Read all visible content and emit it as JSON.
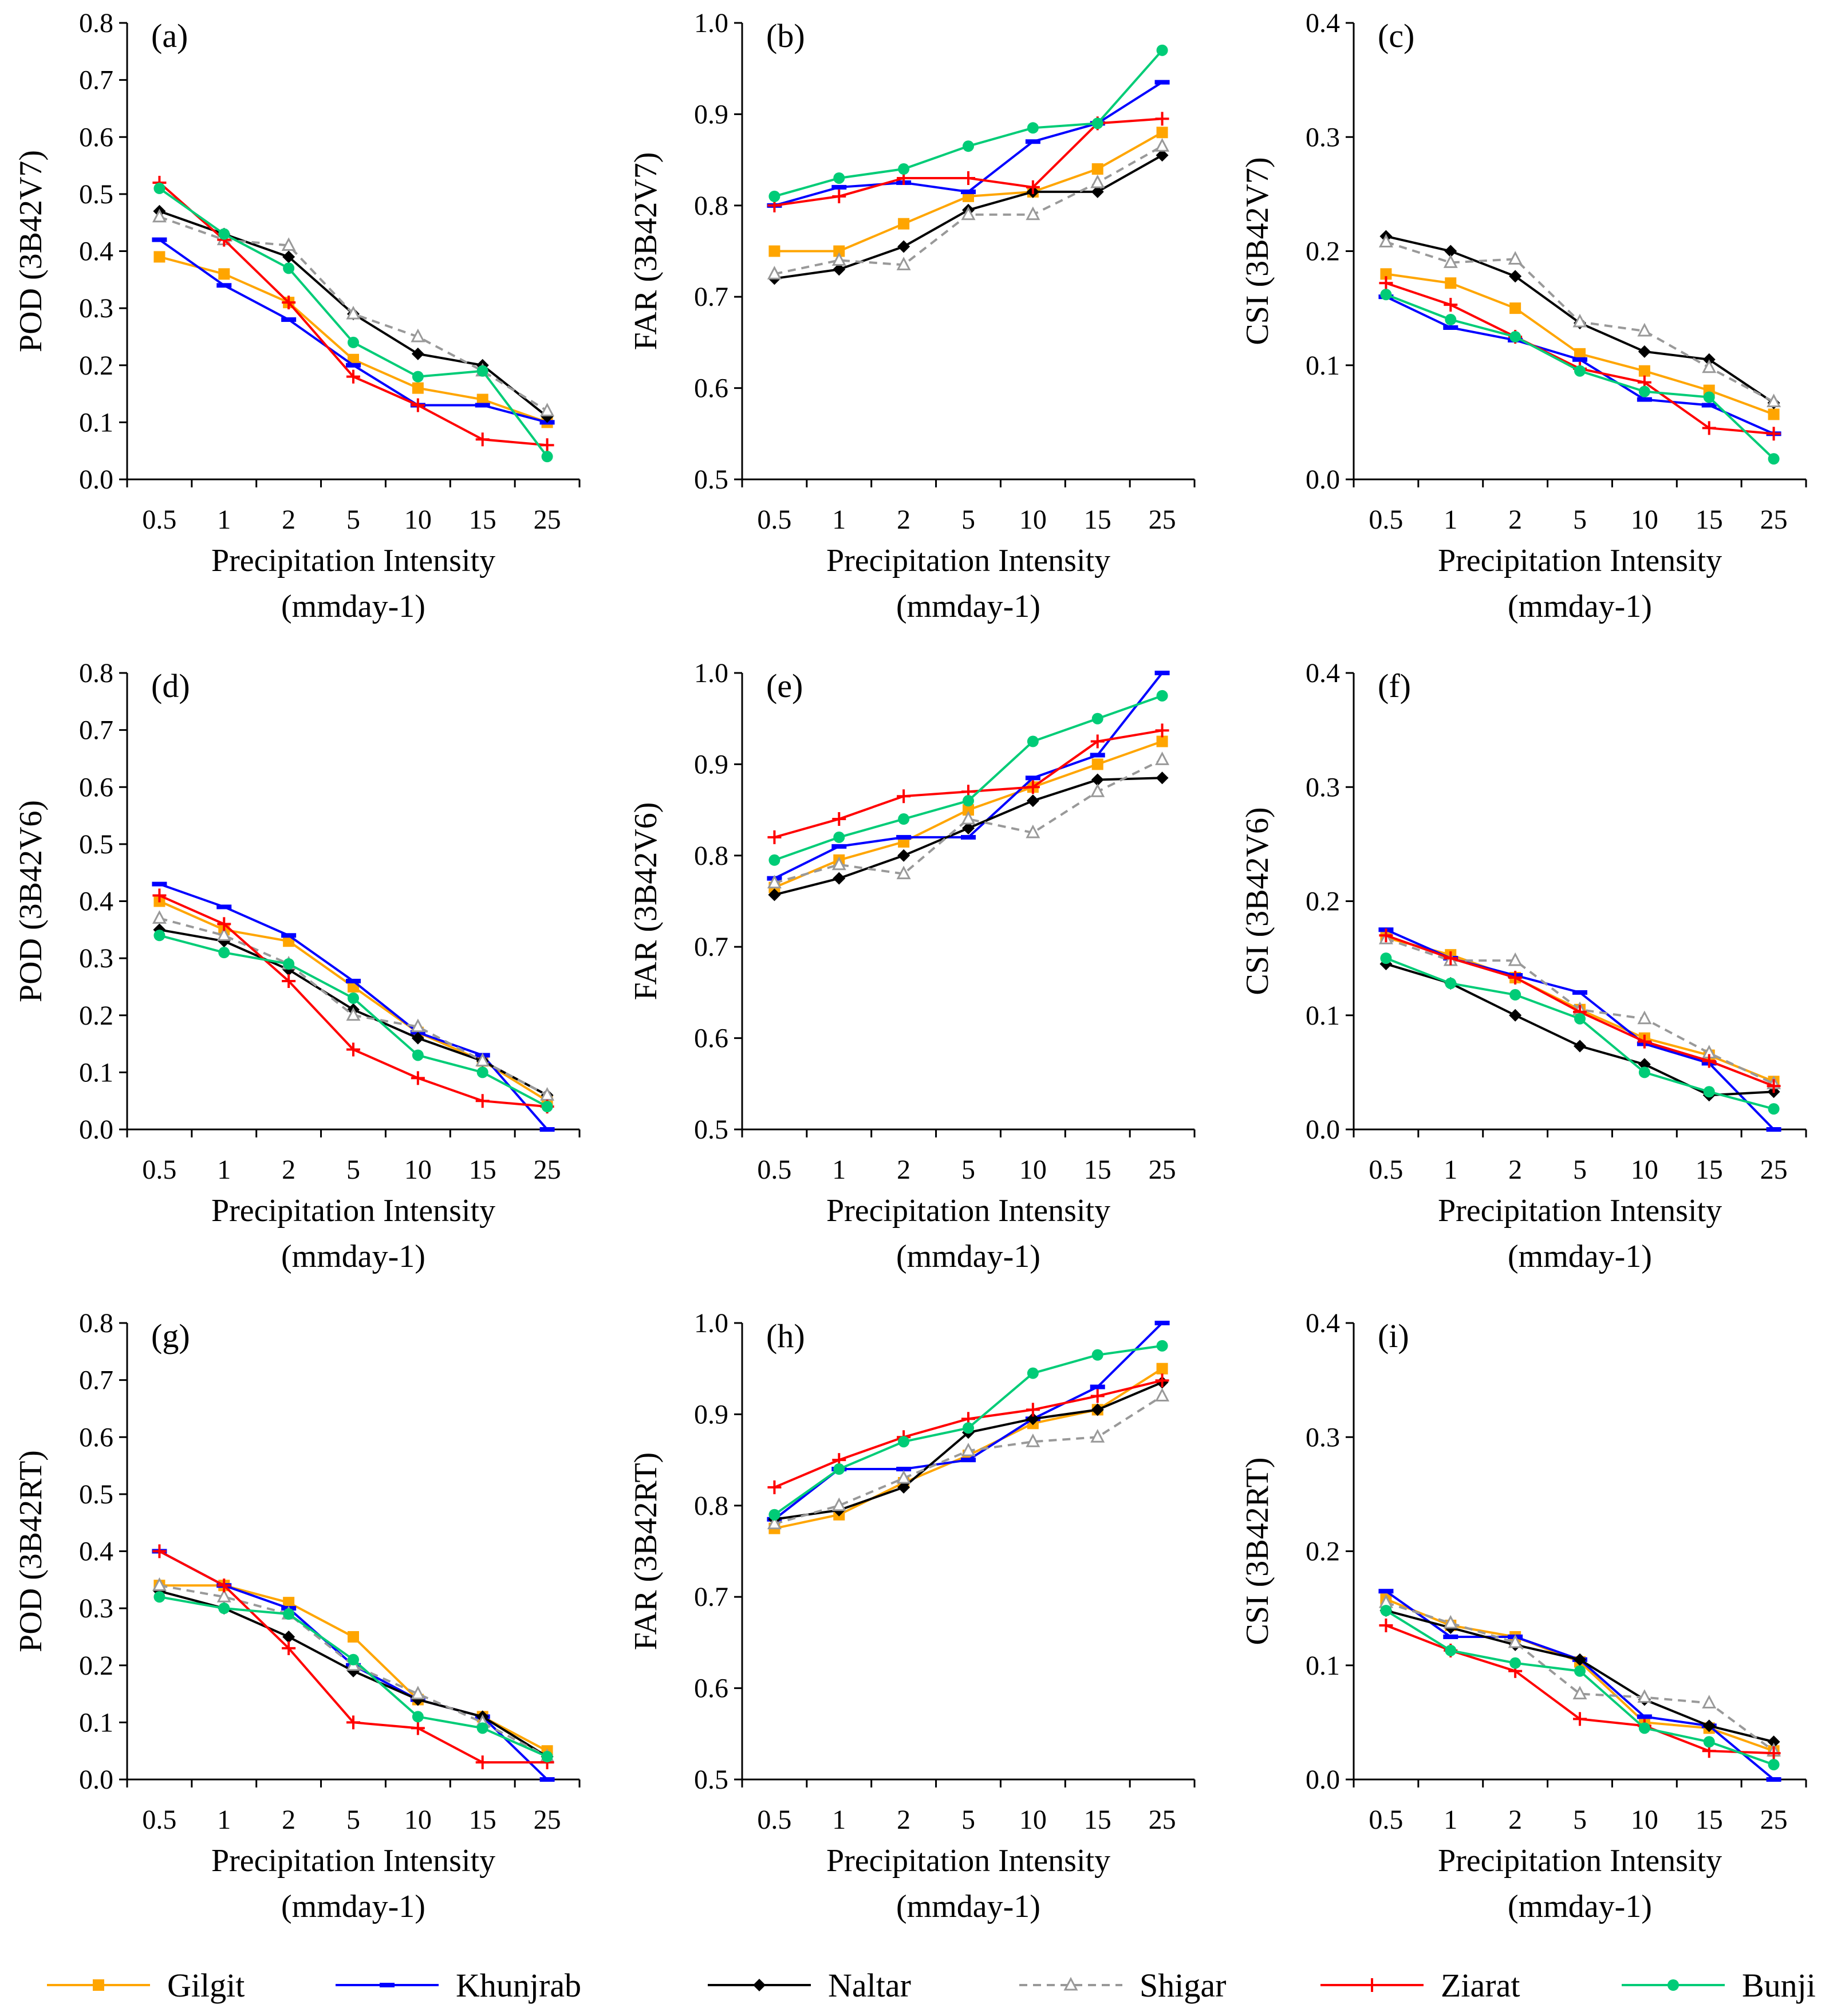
{
  "figure": {
    "category_ticks": [
      "0.5",
      "1",
      "2",
      "5",
      "10",
      "15",
      "25"
    ],
    "xlabel_line1": "Precipitation Intensity",
    "xlabel_line2": "(mmday-1)"
  },
  "series_styles": [
    {
      "name": "Gilgit",
      "color": "#FFA500",
      "marker": "square",
      "dash": ""
    },
    {
      "name": "Khunjrab",
      "color": "#0000FF",
      "marker": "dash",
      "dash": ""
    },
    {
      "name": "Naltar",
      "color": "#000000",
      "marker": "diamond",
      "dash": ""
    },
    {
      "name": "Shigar",
      "color": "#999999",
      "marker": "triangle",
      "dash": "14,10"
    },
    {
      "name": "Ziarat",
      "color": "#FF0000",
      "marker": "plus",
      "dash": ""
    },
    {
      "name": "Bunji",
      "color": "#00CC77",
      "marker": "circle",
      "dash": ""
    }
  ],
  "chart_data": [
    {
      "type": "line",
      "panel": "(a)",
      "ylabel": "POD (3B42V7)",
      "ylim": [
        0,
        0.8
      ],
      "yticks": [
        "0.0",
        "0.1",
        "0.2",
        "0.3",
        "0.4",
        "0.5",
        "0.6",
        "0.7",
        "0.8"
      ],
      "categories": [
        "0.5",
        "1",
        "2",
        "5",
        "10",
        "15",
        "25"
      ],
      "series": [
        {
          "name": "Gilgit",
          "values": [
            0.39,
            0.36,
            0.31,
            0.21,
            0.16,
            0.14,
            0.1
          ]
        },
        {
          "name": "Khunjrab",
          "values": [
            0.42,
            0.34,
            0.28,
            0.2,
            0.13,
            0.13,
            0.1
          ]
        },
        {
          "name": "Naltar",
          "values": [
            0.47,
            0.43,
            0.39,
            0.29,
            0.22,
            0.2,
            0.11
          ]
        },
        {
          "name": "Shigar",
          "values": [
            0.46,
            0.42,
            0.41,
            0.29,
            0.25,
            0.19,
            0.12
          ]
        },
        {
          "name": "Ziarat",
          "values": [
            0.52,
            0.42,
            0.31,
            0.18,
            0.13,
            0.07,
            0.06
          ]
        },
        {
          "name": "Bunji",
          "values": [
            0.51,
            0.43,
            0.37,
            0.24,
            0.18,
            0.19,
            0.04
          ]
        }
      ]
    },
    {
      "type": "line",
      "panel": "(b)",
      "ylabel": "FAR (3B42V7)",
      "ylim": [
        0.5,
        1.0
      ],
      "yticks": [
        "0.5",
        "0.6",
        "0.7",
        "0.8",
        "0.9",
        "1.0"
      ],
      "categories": [
        "0.5",
        "1",
        "2",
        "5",
        "10",
        "15",
        "25"
      ],
      "series": [
        {
          "name": "Gilgit",
          "values": [
            0.75,
            0.75,
            0.78,
            0.81,
            0.815,
            0.84,
            0.88
          ]
        },
        {
          "name": "Khunjrab",
          "values": [
            0.8,
            0.82,
            0.825,
            0.815,
            0.87,
            0.89,
            0.935
          ]
        },
        {
          "name": "Naltar",
          "values": [
            0.72,
            0.73,
            0.755,
            0.795,
            0.815,
            0.815,
            0.855
          ]
        },
        {
          "name": "Shigar",
          "values": [
            0.725,
            0.74,
            0.735,
            0.79,
            0.79,
            0.825,
            0.865
          ]
        },
        {
          "name": "Ziarat",
          "values": [
            0.8,
            0.81,
            0.83,
            0.83,
            0.82,
            0.89,
            0.895
          ]
        },
        {
          "name": "Bunji",
          "values": [
            0.81,
            0.83,
            0.84,
            0.865,
            0.885,
            0.89,
            0.97
          ]
        }
      ]
    },
    {
      "type": "line",
      "panel": "(c)",
      "ylabel": "CSI (3B42V7)",
      "ylim": [
        0,
        0.4
      ],
      "yticks": [
        "0.0",
        "0.1",
        "0.2",
        "0.3",
        "0.4"
      ],
      "categories": [
        "0.5",
        "1",
        "2",
        "5",
        "10",
        "15",
        "25"
      ],
      "series": [
        {
          "name": "Gilgit",
          "values": [
            0.18,
            0.172,
            0.15,
            0.11,
            0.095,
            0.078,
            0.057
          ]
        },
        {
          "name": "Khunjrab",
          "values": [
            0.16,
            0.133,
            0.122,
            0.105,
            0.07,
            0.065,
            0.04
          ]
        },
        {
          "name": "Naltar",
          "values": [
            0.213,
            0.2,
            0.178,
            0.137,
            0.112,
            0.105,
            0.067
          ]
        },
        {
          "name": "Shigar",
          "values": [
            0.208,
            0.19,
            0.193,
            0.138,
            0.13,
            0.098,
            0.068
          ]
        },
        {
          "name": "Ziarat",
          "values": [
            0.172,
            0.153,
            0.125,
            0.097,
            0.085,
            0.045,
            0.04
          ]
        },
        {
          "name": "Bunji",
          "values": [
            0.162,
            0.14,
            0.125,
            0.095,
            0.077,
            0.072,
            0.018
          ]
        }
      ]
    },
    {
      "type": "line",
      "panel": "(d)",
      "ylabel": "POD (3B42V6)",
      "ylim": [
        0,
        0.8
      ],
      "yticks": [
        "0.0",
        "0.1",
        "0.2",
        "0.3",
        "0.4",
        "0.5",
        "0.6",
        "0.7",
        "0.8"
      ],
      "categories": [
        "0.5",
        "1",
        "2",
        "5",
        "10",
        "15",
        "25"
      ],
      "series": [
        {
          "name": "Gilgit",
          "values": [
            0.4,
            0.35,
            0.33,
            0.25,
            0.17,
            0.12,
            0.05
          ]
        },
        {
          "name": "Khunjrab",
          "values": [
            0.43,
            0.39,
            0.34,
            0.26,
            0.17,
            0.13,
            0.0
          ]
        },
        {
          "name": "Naltar",
          "values": [
            0.35,
            0.33,
            0.28,
            0.21,
            0.16,
            0.12,
            0.06
          ]
        },
        {
          "name": "Shigar",
          "values": [
            0.37,
            0.34,
            0.29,
            0.2,
            0.18,
            0.12,
            0.06
          ]
        },
        {
          "name": "Ziarat",
          "values": [
            0.41,
            0.36,
            0.26,
            0.14,
            0.09,
            0.05,
            0.04
          ]
        },
        {
          "name": "Bunji",
          "values": [
            0.34,
            0.31,
            0.29,
            0.23,
            0.13,
            0.1,
            0.04
          ]
        }
      ]
    },
    {
      "type": "line",
      "panel": "(e)",
      "ylabel": "FAR (3B42V6)",
      "ylim": [
        0.5,
        1.0
      ],
      "yticks": [
        "0.5",
        "0.6",
        "0.7",
        "0.8",
        "0.9",
        "1.0"
      ],
      "categories": [
        "0.5",
        "1",
        "2",
        "5",
        "10",
        "15",
        "25"
      ],
      "series": [
        {
          "name": "Gilgit",
          "values": [
            0.765,
            0.795,
            0.815,
            0.85,
            0.875,
            0.9,
            0.925
          ]
        },
        {
          "name": "Khunjrab",
          "values": [
            0.775,
            0.81,
            0.82,
            0.82,
            0.885,
            0.91,
            1.0
          ]
        },
        {
          "name": "Naltar",
          "values": [
            0.757,
            0.775,
            0.8,
            0.83,
            0.86,
            0.883,
            0.885
          ]
        },
        {
          "name": "Shigar",
          "values": [
            0.77,
            0.79,
            0.78,
            0.84,
            0.825,
            0.87,
            0.905
          ]
        },
        {
          "name": "Ziarat",
          "values": [
            0.82,
            0.84,
            0.865,
            0.87,
            0.875,
            0.925,
            0.937
          ]
        },
        {
          "name": "Bunji",
          "values": [
            0.795,
            0.82,
            0.84,
            0.86,
            0.925,
            0.95,
            0.975
          ]
        }
      ]
    },
    {
      "type": "line",
      "panel": "(f)",
      "ylabel": "CSI (3B42V6)",
      "ylim": [
        0,
        0.4
      ],
      "yticks": [
        "0.0",
        "0.1",
        "0.2",
        "0.3",
        "0.4"
      ],
      "categories": [
        "0.5",
        "1",
        "2",
        "5",
        "10",
        "15",
        "25"
      ],
      "series": [
        {
          "name": "Gilgit",
          "values": [
            0.168,
            0.153,
            0.133,
            0.105,
            0.08,
            0.065,
            0.042
          ]
        },
        {
          "name": "Khunjrab",
          "values": [
            0.175,
            0.15,
            0.135,
            0.12,
            0.075,
            0.058,
            0.0
          ]
        },
        {
          "name": "Naltar",
          "values": [
            0.145,
            0.128,
            0.1,
            0.073,
            0.057,
            0.03,
            0.033
          ]
        },
        {
          "name": "Shigar",
          "values": [
            0.167,
            0.148,
            0.148,
            0.105,
            0.097,
            0.067,
            0.04
          ]
        },
        {
          "name": "Ziarat",
          "values": [
            0.17,
            0.15,
            0.133,
            0.103,
            0.077,
            0.06,
            0.038
          ]
        },
        {
          "name": "Bunji",
          "values": [
            0.15,
            0.128,
            0.118,
            0.097,
            0.05,
            0.033,
            0.018
          ]
        }
      ]
    },
    {
      "type": "line",
      "panel": "(g)",
      "ylabel": "POD (3B42RT)",
      "ylim": [
        0,
        0.8
      ],
      "yticks": [
        "0.0",
        "0.1",
        "0.2",
        "0.3",
        "0.4",
        "0.5",
        "0.6",
        "0.7",
        "0.8"
      ],
      "categories": [
        "0.5",
        "1",
        "2",
        "5",
        "10",
        "15",
        "25"
      ],
      "series": [
        {
          "name": "Gilgit",
          "values": [
            0.34,
            0.34,
            0.31,
            0.25,
            0.14,
            0.11,
            0.05
          ]
        },
        {
          "name": "Khunjrab",
          "values": [
            0.4,
            0.34,
            0.3,
            0.2,
            0.14,
            0.11,
            0.0
          ]
        },
        {
          "name": "Naltar",
          "values": [
            0.33,
            0.3,
            0.25,
            0.19,
            0.14,
            0.11,
            0.04
          ]
        },
        {
          "name": "Shigar",
          "values": [
            0.34,
            0.32,
            0.29,
            0.2,
            0.15,
            0.1,
            0.04
          ]
        },
        {
          "name": "Ziarat",
          "values": [
            0.4,
            0.34,
            0.23,
            0.1,
            0.09,
            0.03,
            0.03
          ]
        },
        {
          "name": "Bunji",
          "values": [
            0.32,
            0.3,
            0.29,
            0.21,
            0.11,
            0.09,
            0.04
          ]
        }
      ]
    },
    {
      "type": "line",
      "panel": "(h)",
      "ylabel": "FAR (3B42RT)",
      "ylim": [
        0.5,
        1.0
      ],
      "yticks": [
        "0.5",
        "0.6",
        "0.7",
        "0.8",
        "0.9",
        "1.0"
      ],
      "categories": [
        "0.5",
        "1",
        "2",
        "5",
        "10",
        "15",
        "25"
      ],
      "series": [
        {
          "name": "Gilgit",
          "values": [
            0.775,
            0.79,
            0.825,
            0.855,
            0.89,
            0.905,
            0.95
          ]
        },
        {
          "name": "Khunjrab",
          "values": [
            0.785,
            0.84,
            0.84,
            0.85,
            0.895,
            0.93,
            1.0
          ]
        },
        {
          "name": "Naltar",
          "values": [
            0.785,
            0.795,
            0.82,
            0.88,
            0.895,
            0.905,
            0.935
          ]
        },
        {
          "name": "Shigar",
          "values": [
            0.78,
            0.8,
            0.83,
            0.86,
            0.87,
            0.875,
            0.92
          ]
        },
        {
          "name": "Ziarat",
          "values": [
            0.82,
            0.85,
            0.875,
            0.895,
            0.905,
            0.92,
            0.937
          ]
        },
        {
          "name": "Bunji",
          "values": [
            0.79,
            0.84,
            0.87,
            0.885,
            0.945,
            0.965,
            0.975
          ]
        }
      ]
    },
    {
      "type": "line",
      "panel": "(i)",
      "ylabel": "CSI (3B42RT)",
      "ylim": [
        0,
        0.4
      ],
      "yticks": [
        "0.0",
        "0.1",
        "0.2",
        "0.3",
        "0.4"
      ],
      "categories": [
        "0.5",
        "1",
        "2",
        "5",
        "10",
        "15",
        "25"
      ],
      "series": [
        {
          "name": "Gilgit",
          "values": [
            0.158,
            0.135,
            0.125,
            0.103,
            0.05,
            0.045,
            0.025
          ]
        },
        {
          "name": "Khunjrab",
          "values": [
            0.165,
            0.125,
            0.125,
            0.105,
            0.055,
            0.047,
            0.0
          ]
        },
        {
          "name": "Naltar",
          "values": [
            0.148,
            0.133,
            0.118,
            0.105,
            0.07,
            0.047,
            0.033
          ]
        },
        {
          "name": "Shigar",
          "values": [
            0.155,
            0.137,
            0.12,
            0.075,
            0.072,
            0.067,
            0.025
          ]
        },
        {
          "name": "Ziarat",
          "values": [
            0.135,
            0.113,
            0.095,
            0.053,
            0.047,
            0.025,
            0.023
          ]
        },
        {
          "name": "Bunji",
          "values": [
            0.148,
            0.113,
            0.102,
            0.095,
            0.045,
            0.033,
            0.013
          ]
        }
      ]
    }
  ]
}
